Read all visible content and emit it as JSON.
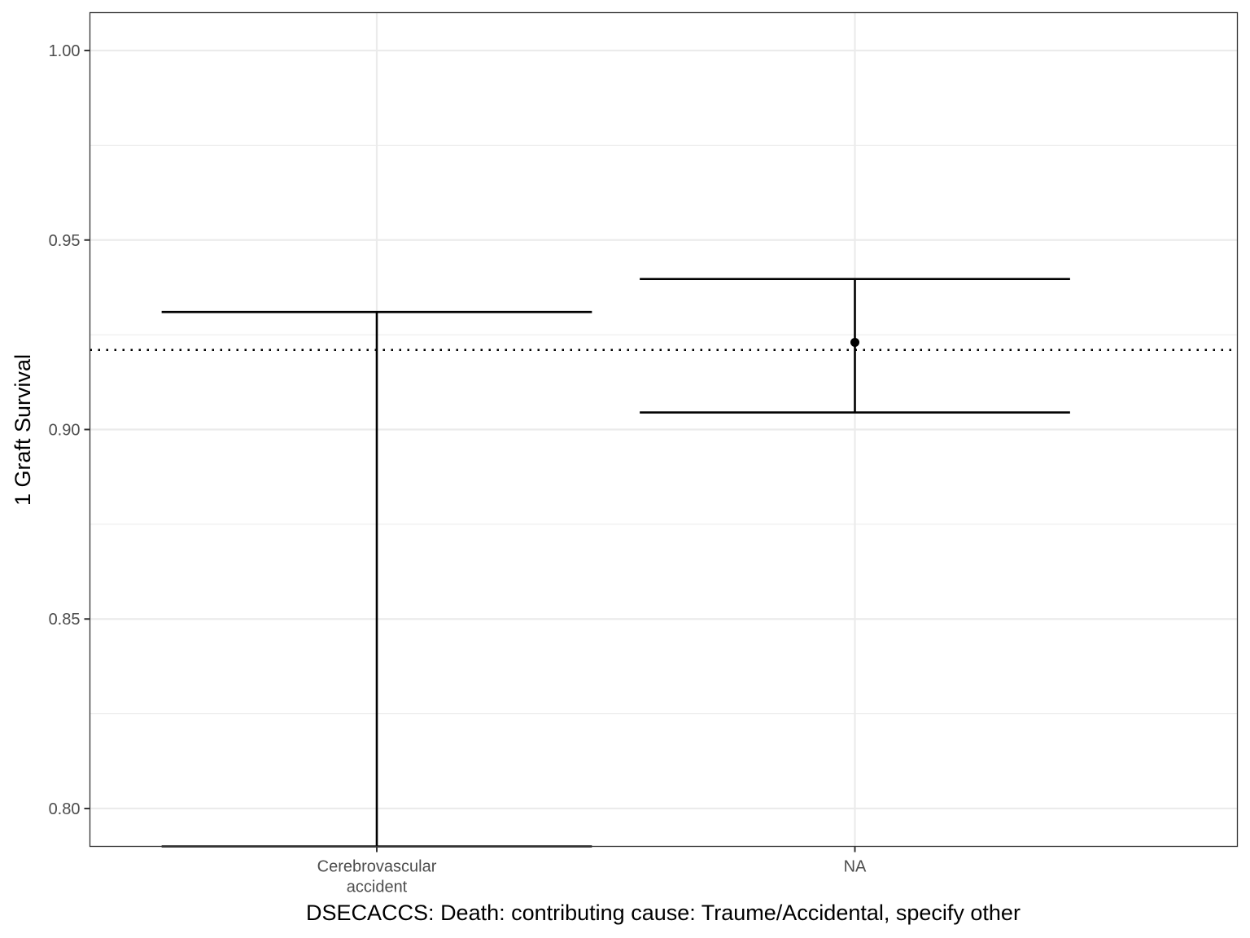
{
  "chart_data": {
    "type": "errorbar",
    "title": "",
    "xlabel": "DSECACCS: Death: contributing cause: Traume/Accidental, specify other",
    "ylabel": "1 Graft Survival",
    "categories": [
      [
        "Cerebrovascular",
        "accident"
      ],
      [
        "NA"
      ]
    ],
    "points": [
      {
        "category_index": 0,
        "estimate": null,
        "lower": 0.79,
        "upper": 0.931
      },
      {
        "category_index": 1,
        "estimate": 0.923,
        "lower": 0.9045,
        "upper": 0.9397
      }
    ],
    "reference_line": {
      "y": 0.921,
      "style": "dotted"
    },
    "ylim": [
      0.79,
      1.01
    ],
    "yticks": [
      0.8,
      0.85,
      0.9,
      0.95,
      1.0
    ],
    "ytick_labels": [
      "0.80",
      "0.85",
      "0.90",
      "0.95",
      "1.00"
    ],
    "grid": true,
    "legend": "none",
    "colors": {
      "marks": "#000000",
      "grid": "#ebebeb",
      "panel_border": "#333333",
      "tick_text": "#4d4d4d"
    }
  }
}
